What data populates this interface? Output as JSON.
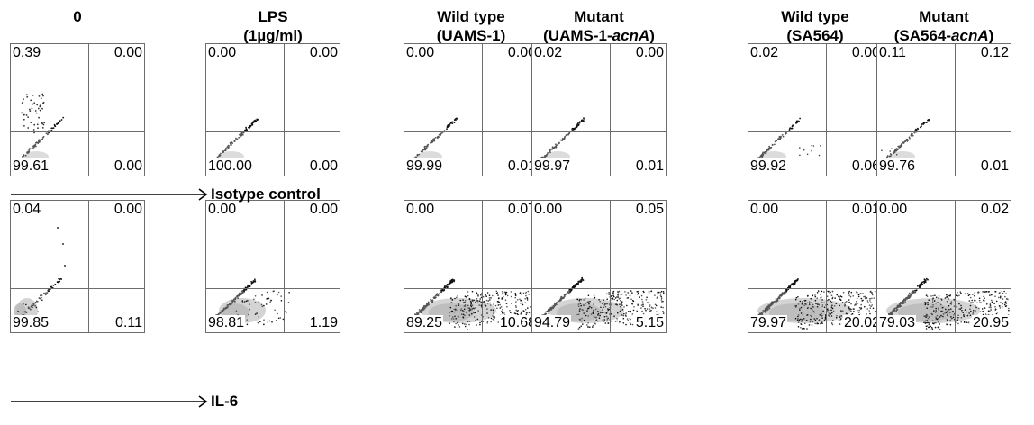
{
  "columns": [
    {
      "line1": "0",
      "line2": "",
      "line2_italic": ""
    },
    {
      "line1": "LPS",
      "line2": "(1µg/ml)",
      "line2_italic": ""
    },
    {
      "line1": "Wild type",
      "line2": "(UAMS-1)",
      "line2_italic": ""
    },
    {
      "line1": "Mutant",
      "line2": "(UAMS-1-",
      "line2_italic": "acnA",
      "line2_end": ")"
    },
    {
      "line1": "Wild type",
      "line2": "(SA564)",
      "line2_italic": ""
    },
    {
      "line1": "Mutant",
      "line2": "(SA564-",
      "line2_italic": "acnA",
      "line2_end": ")"
    }
  ],
  "rows": [
    {
      "axis_label": "Isotype control"
    },
    {
      "axis_label": "IL-6"
    }
  ],
  "chart_data": {
    "type": "scatter",
    "description_of_panels": "2 rows × 6 flow-cytometry quadrant dot plots",
    "panels": [
      [
        {
          "tl": "0.39",
          "tr": "0.00",
          "bl": "99.61",
          "br": "0.00",
          "shape": "iso-spread-up"
        },
        {
          "tl": "0.00",
          "tr": "0.00",
          "bl": "100.00",
          "br": "0.00",
          "shape": "iso"
        },
        {
          "tl": "0.00",
          "tr": "0.00",
          "bl": "99.99",
          "br": "0.01",
          "shape": "iso"
        },
        {
          "tl": "0.02",
          "tr": "0.00",
          "bl": "99.97",
          "br": "0.01",
          "shape": "iso"
        },
        {
          "tl": "0.02",
          "tr": "0.00",
          "bl": "99.92",
          "br": "0.06",
          "shape": "iso-right"
        },
        {
          "tl": "0.11",
          "tr": "0.12",
          "bl": "99.76",
          "br": "0.01",
          "shape": "iso-left"
        }
      ],
      [
        {
          "tl": "0.04",
          "tr": "0.00",
          "bl": "99.85",
          "br": "0.11",
          "shape": "il6-sparse"
        },
        {
          "tl": "0.00",
          "tr": "0.00",
          "bl": "98.81",
          "br": "1.19",
          "shape": "il6-med"
        },
        {
          "tl": "0.00",
          "tr": "0.07",
          "bl": "89.25",
          "br": "10.68",
          "shape": "il6-wide"
        },
        {
          "tl": "0.00",
          "tr": "0.05",
          "bl": "94.79",
          "br": "5.15",
          "shape": "il6-wide"
        },
        {
          "tl": "0.00",
          "tr": "0.01",
          "bl": "79.97",
          "br": "20.02",
          "shape": "il6-wider"
        },
        {
          "tl": "0.00",
          "tr": "0.02",
          "bl": "79.03",
          "br": "20.95",
          "shape": "il6-wider"
        }
      ]
    ]
  }
}
